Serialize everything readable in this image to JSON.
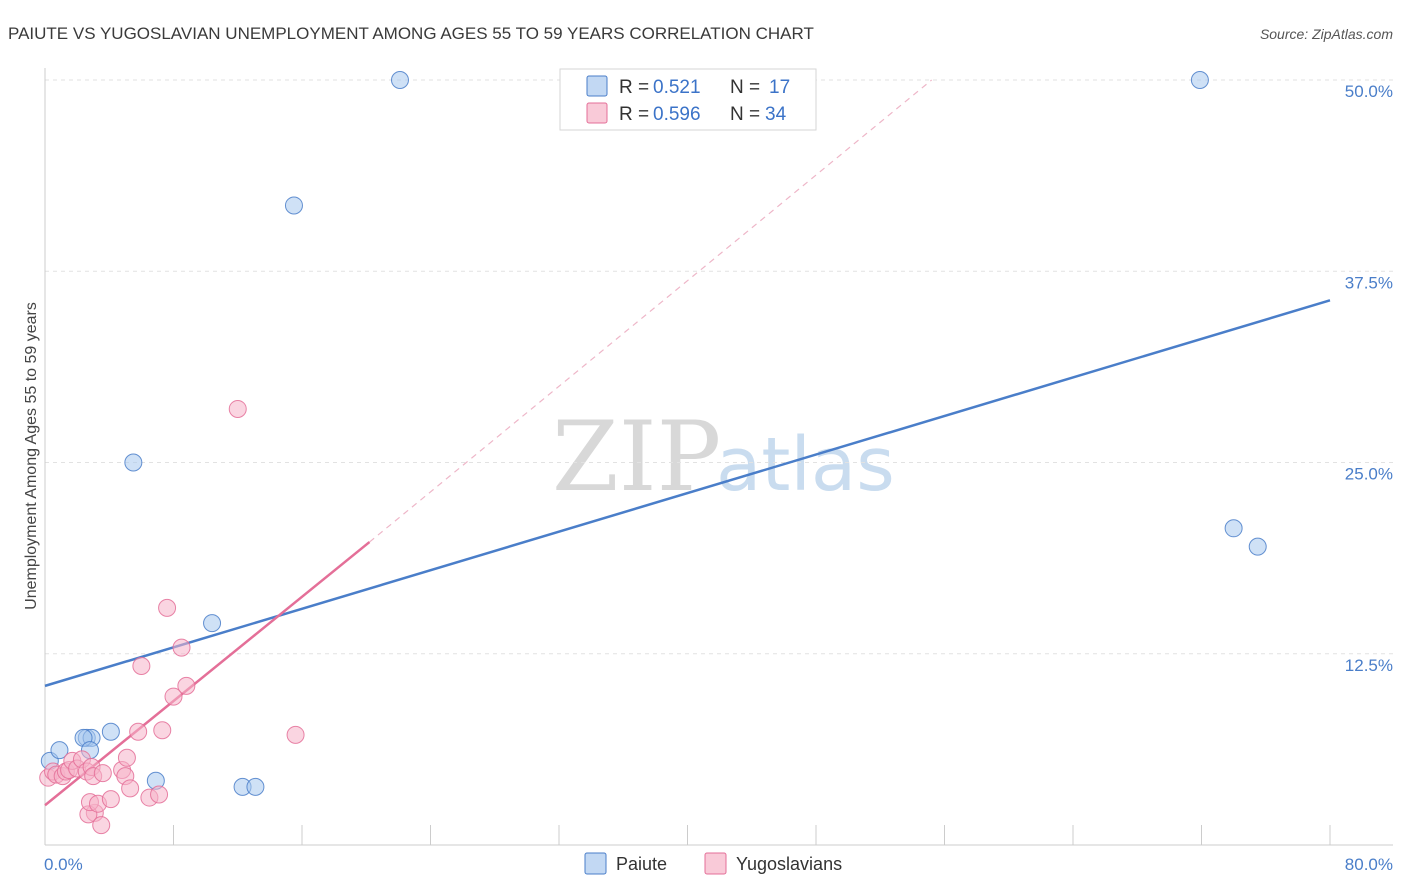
{
  "chart_data": {
    "type": "scatter",
    "title": "PAIUTE VS YUGOSLAVIAN UNEMPLOYMENT AMONG AGES 55 TO 59 YEARS CORRELATION CHART",
    "source": "Source: ZipAtlas.com",
    "xlabel": "",
    "ylabel": "Unemployment Among Ages 55 to 59 years",
    "xlim": [
      0,
      80
    ],
    "ylim": [
      0,
      50
    ],
    "x_tick_labels": [
      "0.0%",
      "80.0%"
    ],
    "y_ticks": [
      12.5,
      25.0,
      37.5,
      50.0
    ],
    "y_tick_labels": [
      "12.5%",
      "25.0%",
      "37.5%",
      "50.0%"
    ],
    "watermark": {
      "zip": "ZIP",
      "atlas": "atlas"
    },
    "legend": [
      {
        "r_label": "R =",
        "r_value": "0.521",
        "n_label": "N =",
        "n_value": "17"
      },
      {
        "r_label": "R =",
        "r_value": "0.596",
        "n_label": "N =",
        "n_value": "34"
      }
    ],
    "series": [
      {
        "name": "Paiute",
        "color": "#4a7ec9",
        "fill": "#a8c8ee",
        "points": [
          [
            0.3,
            5.5
          ],
          [
            0.9,
            6.2
          ],
          [
            2.6,
            7.0
          ],
          [
            2.9,
            7.0
          ],
          [
            2.4,
            7.0
          ],
          [
            2.8,
            6.2
          ],
          [
            4.1,
            7.4
          ],
          [
            5.5,
            25.0
          ],
          [
            6.9,
            4.2
          ],
          [
            10.4,
            14.5
          ],
          [
            12.3,
            3.8
          ],
          [
            13.1,
            3.8
          ],
          [
            15.5,
            41.8
          ],
          [
            22.1,
            50.0
          ],
          [
            71.9,
            50.0
          ],
          [
            74.0,
            20.7
          ],
          [
            75.5,
            19.5
          ]
        ],
        "trend": {
          "x": [
            0,
            80
          ],
          "y": [
            10.4,
            35.6
          ]
        }
      },
      {
        "name": "Yugoslavians",
        "color": "#e46f98",
        "fill": "#f6b3c8",
        "points": [
          [
            0.2,
            4.4
          ],
          [
            0.5,
            4.8
          ],
          [
            0.7,
            4.6
          ],
          [
            1.1,
            4.5
          ],
          [
            1.3,
            4.8
          ],
          [
            1.5,
            4.9
          ],
          [
            1.7,
            5.5
          ],
          [
            2.0,
            5.0
          ],
          [
            2.3,
            5.6
          ],
          [
            2.6,
            4.8
          ],
          [
            2.9,
            5.1
          ],
          [
            3.1,
            2.1
          ],
          [
            2.7,
            2.0
          ],
          [
            2.8,
            2.8
          ],
          [
            3.0,
            4.5
          ],
          [
            3.5,
            1.3
          ],
          [
            3.3,
            2.7
          ],
          [
            3.6,
            4.7
          ],
          [
            4.1,
            3.0
          ],
          [
            4.8,
            4.9
          ],
          [
            5.1,
            5.7
          ],
          [
            5.0,
            4.5
          ],
          [
            5.3,
            3.7
          ],
          [
            5.8,
            7.4
          ],
          [
            6.0,
            11.7
          ],
          [
            6.5,
            3.1
          ],
          [
            7.1,
            3.3
          ],
          [
            7.3,
            7.5
          ],
          [
            7.6,
            15.5
          ],
          [
            8.0,
            9.7
          ],
          [
            8.5,
            12.9
          ],
          [
            8.8,
            10.4
          ],
          [
            12.0,
            28.5
          ],
          [
            15.6,
            7.2
          ]
        ],
        "trend": {
          "x": [
            0,
            20.2
          ],
          "y": [
            2.6,
            19.8
          ]
        },
        "trend_extension": {
          "x": [
            20.2,
            55.2
          ],
          "y": [
            19.8,
            50.0
          ]
        }
      }
    ]
  }
}
